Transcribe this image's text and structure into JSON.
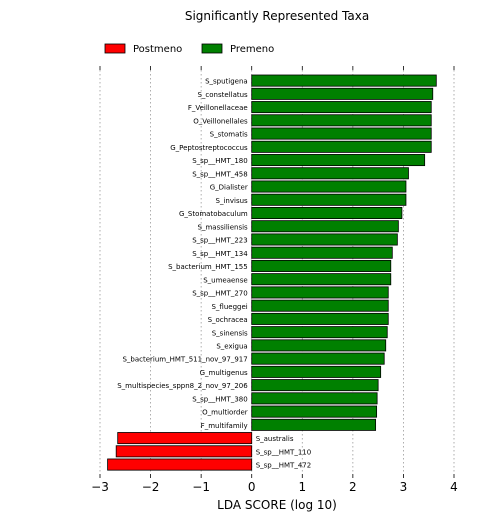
{
  "chart_data": {
    "type": "bar",
    "orientation": "horizontal",
    "title": "Significantly Represented Taxa",
    "xlabel": "LDA SCORE (log 10)",
    "ylabel": "",
    "xlim": [
      -3,
      4
    ],
    "xticks": [
      "−3",
      "−2",
      "−1",
      "0",
      "1",
      "2",
      "3",
      "4"
    ],
    "grid": "vertical dotted",
    "legend_position": "top-left",
    "series": [
      {
        "name": "Postmeno",
        "color": "#ff0000"
      },
      {
        "name": "Premeno",
        "color": "#008000"
      }
    ],
    "categories": [
      "S_sputigena",
      "S_constellatus",
      "F_Veillonellaceae",
      "O_Veillonellales",
      "S_stomatis",
      "G_Peptostreptococcus",
      "S_sp__HMT_180",
      "S_sp__HMT_458",
      "G_Dialister",
      "S_invisus",
      "G_Stomatobaculum",
      "S_massiliensis",
      "S_sp__HMT_223",
      "S_sp__HMT_134",
      "S_bacterium_HMT_155",
      "S_umeaense",
      "S_sp__HMT_270",
      "S_flueggei",
      "S_ochracea",
      "S_sinensis",
      "S_exigua",
      "S_bacterium_HMT_511_nov_97_917",
      "G_multigenus",
      "S_multispecies_sppn8_2_nov_97_206",
      "S_sp__HMT_380",
      "O_multiorder",
      "F_multifamily",
      "S_australis",
      "S_sp__HMT_110",
      "S_sp__HMT_472"
    ],
    "values": [
      3.65,
      3.58,
      3.55,
      3.55,
      3.55,
      3.55,
      3.42,
      3.1,
      3.05,
      3.05,
      2.97,
      2.9,
      2.88,
      2.78,
      2.75,
      2.75,
      2.7,
      2.7,
      2.7,
      2.68,
      2.65,
      2.62,
      2.55,
      2.5,
      2.48,
      2.47,
      2.45,
      -2.65,
      -2.68,
      -2.85
    ],
    "groups": [
      "Premeno",
      "Premeno",
      "Premeno",
      "Premeno",
      "Premeno",
      "Premeno",
      "Premeno",
      "Premeno",
      "Premeno",
      "Premeno",
      "Premeno",
      "Premeno",
      "Premeno",
      "Premeno",
      "Premeno",
      "Premeno",
      "Premeno",
      "Premeno",
      "Premeno",
      "Premeno",
      "Premeno",
      "Premeno",
      "Premeno",
      "Premeno",
      "Premeno",
      "Premeno",
      "Premeno",
      "Postmeno",
      "Postmeno",
      "Postmeno"
    ]
  }
}
